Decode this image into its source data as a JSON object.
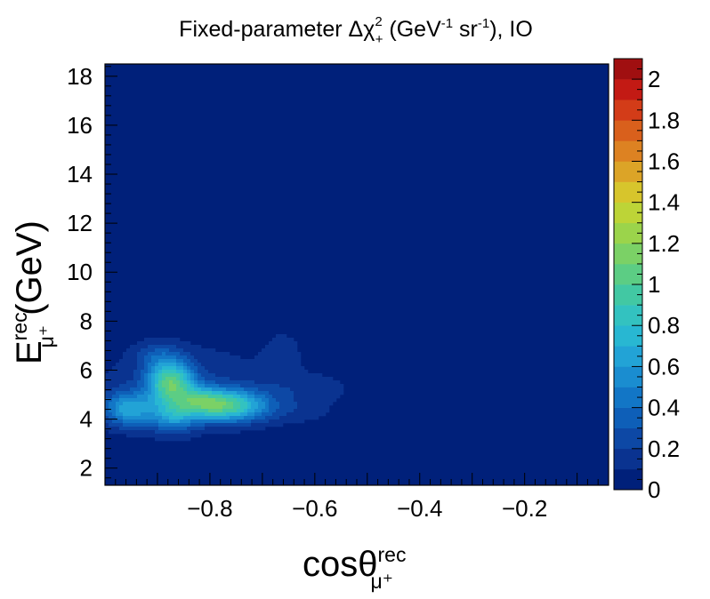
{
  "chart_data": {
    "type": "heatmap",
    "title_parts": {
      "prefix": "Fixed-parameter Δχ",
      "chi_sup": "2",
      "chi_sub": "+",
      "units_open": " (GeV",
      "gev_exp": "-1",
      "sr": " sr",
      "sr_exp": "-1",
      "suffix": "), IO"
    },
    "xlabel_parts": {
      "main": "cosθ",
      "sup": "rec",
      "sub": "μ⁺"
    },
    "ylabel_parts": {
      "main": "E",
      "sup": "rec",
      "sub": "μ⁺",
      "unit": " (GeV)"
    },
    "xlim": [
      -1.0,
      -0.04
    ],
    "ylim": [
      1.3,
      18.5
    ],
    "x_ticks": [
      -0.8,
      -0.6,
      -0.4,
      -0.2
    ],
    "x_tick_labels": [
      "−0.8",
      "−0.6",
      "−0.4",
      "−0.2"
    ],
    "y_ticks": [
      2,
      4,
      6,
      8,
      10,
      12,
      14,
      16,
      18
    ],
    "y_tick_labels": [
      "2",
      "4",
      "6",
      "8",
      "10",
      "12",
      "14",
      "16",
      "18"
    ],
    "colorbar": {
      "zlim": [
        0,
        2.1
      ],
      "ticks": [
        0,
        0.2,
        0.4,
        0.6,
        0.8,
        1,
        1.2,
        1.4,
        1.6,
        1.8,
        2
      ],
      "tick_labels": [
        "0",
        "0.2",
        "0.4",
        "0.6",
        "0.8",
        "1",
        "1.2",
        "1.4",
        "1.6",
        "1.8",
        "2"
      ],
      "levels": 20,
      "colors": [
        "#00207a",
        "#0a3390",
        "#0d48a5",
        "#0e5fb8",
        "#1276c6",
        "#1a8dd0",
        "#22a3d6",
        "#28b7d2",
        "#33c2c0",
        "#42c8a3",
        "#5ccd84",
        "#7bd166",
        "#9bd44b",
        "#bdd437",
        "#d7c52c",
        "#dca427",
        "#dd8222",
        "#d9601c",
        "#d33c18",
        "#c31a14",
        "#a00f10",
        "#7c0a0a"
      ]
    },
    "background_value": 0.1,
    "blobs": [
      {
        "x": -0.875,
        "y": 5.5,
        "sx": 0.03,
        "sy": 0.6,
        "amp": 0.95
      },
      {
        "x": -0.77,
        "y": 4.55,
        "sx": 0.055,
        "sy": 0.45,
        "amp": 0.95
      },
      {
        "x": -0.955,
        "y": 4.4,
        "sx": 0.035,
        "sy": 0.5,
        "amp": 0.6
      },
      {
        "x": -0.87,
        "y": 4.1,
        "sx": 0.03,
        "sy": 0.5,
        "amp": 0.45
      },
      {
        "x": -0.82,
        "y": 4.8,
        "sx": 0.03,
        "sy": 0.4,
        "amp": 0.35
      },
      {
        "x": -0.9,
        "y": 6.6,
        "sx": 0.03,
        "sy": 0.4,
        "amp": 0.2
      },
      {
        "x": -0.84,
        "y": 5.4,
        "sx": 0.15,
        "sy": 1.4,
        "amp": 0.18
      },
      {
        "x": -0.66,
        "y": 6.7,
        "sx": 0.025,
        "sy": 0.7,
        "amp": 0.13
      },
      {
        "x": -0.6,
        "y": 5.3,
        "sx": 0.06,
        "sy": 0.45,
        "amp": 0.12
      },
      {
        "x": -0.62,
        "y": 4.3,
        "sx": 0.05,
        "sy": 0.4,
        "amp": 0.1
      }
    ]
  }
}
